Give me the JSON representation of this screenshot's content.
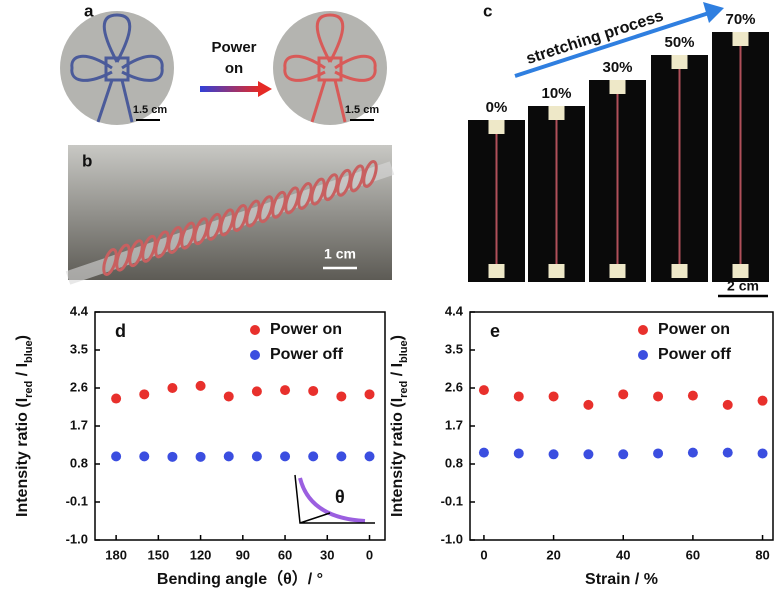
{
  "panels": {
    "a": {
      "label": "a",
      "arrow_text": [
        "Power",
        "on"
      ],
      "scale_bars": [
        "1.5 cm",
        "1.5 cm"
      ]
    },
    "b": {
      "label": "b",
      "scale_bar": "1 cm"
    },
    "c": {
      "label": "c",
      "arrow_text": "stretching process",
      "strains": [
        "0%",
        "10%",
        "30%",
        "50%",
        "70%"
      ],
      "scale_bar": "2 cm"
    }
  },
  "chart_data": [
    {
      "type": "scatter",
      "panel": "d",
      "x_label": "Bending angle（θ）/ °",
      "y_label_parts": [
        "Intensity ratio (I",
        "red",
        " / I",
        "blue",
        ")"
      ],
      "annotation": "θ",
      "x": [
        180,
        160,
        140,
        120,
        100,
        80,
        60,
        40,
        20,
        0
      ],
      "series": [
        {
          "name": "Power on",
          "color": "#e8302c",
          "values": [
            2.35,
            2.45,
            2.6,
            2.65,
            2.4,
            2.52,
            2.55,
            2.53,
            2.4,
            2.45
          ]
        },
        {
          "name": "Power off",
          "color": "#3b4ee0",
          "values": [
            0.98,
            0.98,
            0.97,
            0.97,
            0.98,
            0.98,
            0.98,
            0.98,
            0.98,
            0.98
          ]
        }
      ],
      "xlim": [
        195,
        -11
      ],
      "xticks": [
        180,
        150,
        120,
        90,
        60,
        30,
        0
      ],
      "ylim": [
        -1,
        4.4
      ],
      "yticks": [
        {
          "value": -1,
          "label": "-1.0"
        },
        -0.1,
        0.8,
        1.7,
        2.6,
        3.5,
        4.4
      ],
      "legend": "upper right",
      "grid": false
    },
    {
      "type": "scatter",
      "panel": "e",
      "x_label": "Strain / %",
      "y_label_parts": [
        "Intensity ratio (I",
        "red",
        " / I",
        "blue",
        ")"
      ],
      "x": [
        0,
        10,
        20,
        30,
        40,
        50,
        60,
        70,
        80
      ],
      "series": [
        {
          "name": "Power on",
          "color": "#e8302c",
          "values": [
            2.55,
            2.4,
            2.4,
            2.2,
            2.45,
            2.4,
            2.42,
            2.2,
            2.3
          ]
        },
        {
          "name": "Power off",
          "color": "#3b4ee0",
          "values": [
            1.07,
            1.05,
            1.03,
            1.03,
            1.03,
            1.05,
            1.07,
            1.07,
            1.05
          ]
        }
      ],
      "xlim": [
        -4,
        83
      ],
      "xticks": [
        0,
        20,
        40,
        60,
        80
      ],
      "ylim": [
        -1,
        4.4
      ],
      "yticks": [
        {
          "value": -1,
          "label": "-1.0"
        },
        -0.1,
        0.8,
        1.7,
        2.6,
        3.5,
        4.4
      ],
      "legend": "upper right",
      "grid": false
    }
  ]
}
